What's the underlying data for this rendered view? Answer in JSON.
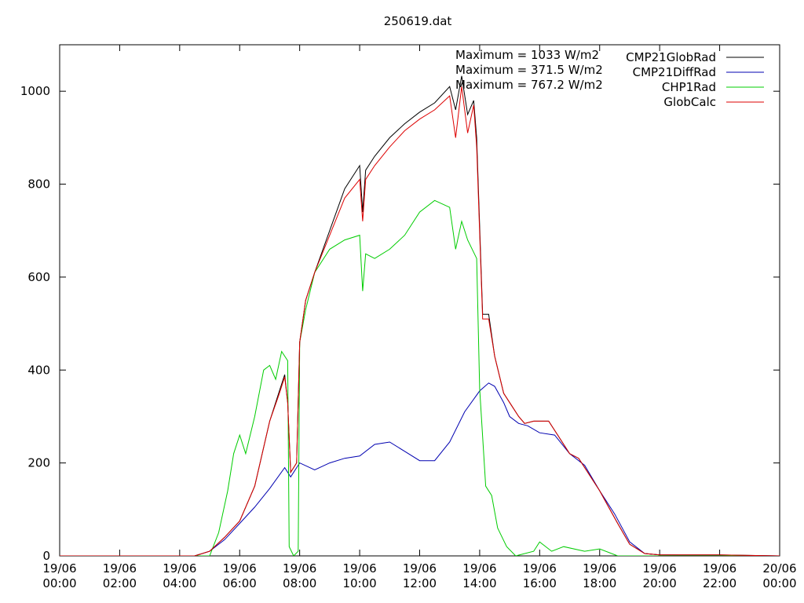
{
  "chart_data": {
    "type": "line",
    "title": "250619.dat",
    "xlabel": "",
    "ylabel": "",
    "xlim": [
      0,
      24
    ],
    "ylim": [
      0,
      1100
    ],
    "grid": false,
    "legend_position": "top-right",
    "x_ticks": [
      {
        "value": 0,
        "label": "19/06\n00:00"
      },
      {
        "value": 2,
        "label": "19/06\n02:00"
      },
      {
        "value": 4,
        "label": "19/06\n04:00"
      },
      {
        "value": 6,
        "label": "19/06\n06:00"
      },
      {
        "value": 8,
        "label": "19/06\n08:00"
      },
      {
        "value": 10,
        "label": "19/06\n10:00"
      },
      {
        "value": 12,
        "label": "19/06\n12:00"
      },
      {
        "value": 14,
        "label": "19/06\n14:00"
      },
      {
        "value": 16,
        "label": "19/06\n16:00"
      },
      {
        "value": 18,
        "label": "19/06\n18:00"
      },
      {
        "value": 20,
        "label": "19/06\n20:00"
      },
      {
        "value": 22,
        "label": "19/06\n22:00"
      },
      {
        "value": 24,
        "label": "20/06\n00:00"
      }
    ],
    "y_ticks": [
      0,
      200,
      400,
      600,
      800,
      1000
    ],
    "annotations": [
      "Maximum = 1033 W/m2",
      "Maximum = 371.5 W/m2",
      "Maximum = 767.2 W/m2"
    ],
    "series": [
      {
        "name": "CMP21GlobRad",
        "color": "#000000",
        "points": [
          [
            0,
            0
          ],
          [
            4.5,
            0
          ],
          [
            5,
            10
          ],
          [
            5.5,
            40
          ],
          [
            6,
            75
          ],
          [
            6.5,
            150
          ],
          [
            7,
            290
          ],
          [
            7.3,
            350
          ],
          [
            7.5,
            390
          ],
          [
            7.6,
            330
          ],
          [
            7.7,
            180
          ],
          [
            7.9,
            200
          ],
          [
            8.0,
            460
          ],
          [
            8.2,
            550
          ],
          [
            8.5,
            610
          ],
          [
            9,
            700
          ],
          [
            9.5,
            790
          ],
          [
            10,
            840
          ],
          [
            10.1,
            740
          ],
          [
            10.2,
            830
          ],
          [
            10.5,
            860
          ],
          [
            11,
            900
          ],
          [
            11.5,
            930
          ],
          [
            12,
            955
          ],
          [
            12.5,
            975
          ],
          [
            13,
            1010
          ],
          [
            13.2,
            960
          ],
          [
            13.4,
            1033
          ],
          [
            13.6,
            950
          ],
          [
            13.8,
            980
          ],
          [
            13.9,
            900
          ],
          [
            14.1,
            520
          ],
          [
            14.3,
            520
          ],
          [
            14.5,
            430
          ],
          [
            14.8,
            350
          ],
          [
            15,
            330
          ],
          [
            15.3,
            300
          ],
          [
            15.5,
            285
          ],
          [
            15.8,
            290
          ],
          [
            16,
            290
          ],
          [
            16.3,
            290
          ],
          [
            16.6,
            260
          ],
          [
            17,
            220
          ],
          [
            17.3,
            210
          ],
          [
            17.6,
            180
          ],
          [
            18,
            140
          ],
          [
            18.3,
            105
          ],
          [
            18.6,
            70
          ],
          [
            19,
            25
          ],
          [
            19.5,
            5
          ],
          [
            20,
            2
          ],
          [
            22,
            2
          ],
          [
            24,
            0
          ]
        ]
      },
      {
        "name": "CMP21DiffRad",
        "color": "#0000b0",
        "points": [
          [
            0,
            0
          ],
          [
            4.5,
            0
          ],
          [
            5,
            10
          ],
          [
            5.5,
            35
          ],
          [
            6,
            70
          ],
          [
            6.5,
            105
          ],
          [
            7,
            145
          ],
          [
            7.5,
            190
          ],
          [
            7.7,
            170
          ],
          [
            8,
            200
          ],
          [
            8.5,
            185
          ],
          [
            9,
            200
          ],
          [
            9.5,
            210
          ],
          [
            10,
            215
          ],
          [
            10.5,
            240
          ],
          [
            11,
            245
          ],
          [
            11.5,
            225
          ],
          [
            12,
            205
          ],
          [
            12.5,
            205
          ],
          [
            13,
            245
          ],
          [
            13.5,
            310
          ],
          [
            14,
            355
          ],
          [
            14.3,
            372
          ],
          [
            14.5,
            365
          ],
          [
            14.8,
            330
          ],
          [
            15,
            300
          ],
          [
            15.3,
            285
          ],
          [
            15.6,
            280
          ],
          [
            16,
            265
          ],
          [
            16.5,
            260
          ],
          [
            17,
            220
          ],
          [
            17.5,
            195
          ],
          [
            18,
            140
          ],
          [
            18.5,
            90
          ],
          [
            19,
            30
          ],
          [
            19.5,
            5
          ],
          [
            20,
            2
          ],
          [
            24,
            0
          ]
        ]
      },
      {
        "name": "CHP1Rad",
        "color": "#00cc00",
        "points": [
          [
            0,
            0
          ],
          [
            5,
            0
          ],
          [
            5.3,
            50
          ],
          [
            5.6,
            140
          ],
          [
            5.8,
            220
          ],
          [
            6,
            260
          ],
          [
            6.2,
            220
          ],
          [
            6.5,
            300
          ],
          [
            6.8,
            400
          ],
          [
            7,
            410
          ],
          [
            7.2,
            380
          ],
          [
            7.4,
            440
          ],
          [
            7.6,
            420
          ],
          [
            7.65,
            20
          ],
          [
            7.8,
            0
          ],
          [
            7.95,
            10
          ],
          [
            8.0,
            460
          ],
          [
            8.2,
            530
          ],
          [
            8.5,
            610
          ],
          [
            9,
            660
          ],
          [
            9.5,
            680
          ],
          [
            10,
            690
          ],
          [
            10.1,
            570
          ],
          [
            10.2,
            650
          ],
          [
            10.5,
            640
          ],
          [
            11,
            660
          ],
          [
            11.5,
            690
          ],
          [
            12,
            740
          ],
          [
            12.5,
            765
          ],
          [
            13,
            750
          ],
          [
            13.2,
            660
          ],
          [
            13.4,
            720
          ],
          [
            13.6,
            680
          ],
          [
            13.9,
            640
          ],
          [
            14.0,
            360
          ],
          [
            14.2,
            150
          ],
          [
            14.4,
            130
          ],
          [
            14.6,
            60
          ],
          [
            14.9,
            20
          ],
          [
            15.2,
            0
          ],
          [
            15.8,
            10
          ],
          [
            16,
            30
          ],
          [
            16.4,
            10
          ],
          [
            16.8,
            20
          ],
          [
            17.5,
            10
          ],
          [
            18,
            15
          ],
          [
            18.6,
            0
          ],
          [
            24,
            0
          ]
        ]
      },
      {
        "name": "GlobCalc",
        "color": "#dd0000",
        "points": [
          [
            0,
            0
          ],
          [
            4.5,
            0
          ],
          [
            5,
            10
          ],
          [
            5.5,
            40
          ],
          [
            6,
            75
          ],
          [
            6.5,
            150
          ],
          [
            7,
            290
          ],
          [
            7.3,
            345
          ],
          [
            7.5,
            385
          ],
          [
            7.6,
            330
          ],
          [
            7.7,
            180
          ],
          [
            7.9,
            200
          ],
          [
            8.0,
            460
          ],
          [
            8.2,
            550
          ],
          [
            8.5,
            610
          ],
          [
            9,
            690
          ],
          [
            9.5,
            770
          ],
          [
            10,
            810
          ],
          [
            10.1,
            720
          ],
          [
            10.2,
            810
          ],
          [
            10.5,
            840
          ],
          [
            11,
            880
          ],
          [
            11.5,
            915
          ],
          [
            12,
            940
          ],
          [
            12.5,
            960
          ],
          [
            13,
            990
          ],
          [
            13.2,
            900
          ],
          [
            13.4,
            1010
          ],
          [
            13.6,
            910
          ],
          [
            13.8,
            970
          ],
          [
            13.9,
            880
          ],
          [
            14.1,
            510
          ],
          [
            14.3,
            510
          ],
          [
            14.5,
            430
          ],
          [
            14.8,
            350
          ],
          [
            15,
            330
          ],
          [
            15.3,
            300
          ],
          [
            15.5,
            285
          ],
          [
            15.8,
            290
          ],
          [
            16,
            290
          ],
          [
            16.3,
            290
          ],
          [
            16.6,
            260
          ],
          [
            17,
            220
          ],
          [
            17.3,
            210
          ],
          [
            17.6,
            180
          ],
          [
            18,
            140
          ],
          [
            18.3,
            105
          ],
          [
            18.6,
            70
          ],
          [
            19,
            25
          ],
          [
            19.5,
            5
          ],
          [
            20,
            2
          ],
          [
            22,
            2
          ],
          [
            24,
            0
          ]
        ]
      }
    ]
  }
}
